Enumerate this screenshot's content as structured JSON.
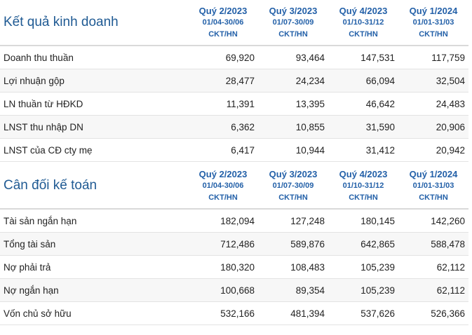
{
  "periods": [
    {
      "quarter": "Quý 2/2023",
      "range": "01/04-30/06",
      "unit": "CKT/HN"
    },
    {
      "quarter": "Quý 3/2023",
      "range": "01/07-30/09",
      "unit": "CKT/HN"
    },
    {
      "quarter": "Quý 4/2023",
      "range": "01/10-31/12",
      "unit": "CKT/HN"
    },
    {
      "quarter": "Quý 1/2024",
      "range": "01/01-31/03",
      "unit": "CKT/HN"
    }
  ],
  "business": {
    "title": "Kết quả kinh doanh",
    "rows": [
      {
        "label": "Doanh thu thuần",
        "values": [
          "69,920",
          "93,464",
          "147,531",
          "117,759"
        ]
      },
      {
        "label": "Lợi nhuận gộp",
        "values": [
          "28,477",
          "24,234",
          "66,094",
          "32,504"
        ]
      },
      {
        "label": "LN thuần từ HĐKD",
        "values": [
          "11,391",
          "13,395",
          "46,642",
          "24,483"
        ]
      },
      {
        "label": "LNST thu nhập DN",
        "values": [
          "6,362",
          "10,855",
          "31,590",
          "20,906"
        ]
      },
      {
        "label": "LNST của CĐ cty mẹ",
        "values": [
          "6,417",
          "10,944",
          "31,412",
          "20,942"
        ]
      }
    ]
  },
  "balance": {
    "title": "Cân đối kế toán",
    "rows": [
      {
        "label": "Tài sản ngắn hạn",
        "values": [
          "182,094",
          "127,248",
          "180,145",
          "142,260"
        ]
      },
      {
        "label": "Tổng tài sản",
        "values": [
          "712,486",
          "589,876",
          "642,865",
          "588,478"
        ]
      },
      {
        "label": "Nợ phải trả",
        "values": [
          "180,320",
          "108,483",
          "105,239",
          "62,112"
        ]
      },
      {
        "label": "Nợ ngắn hạn",
        "values": [
          "100,668",
          "89,354",
          "105,239",
          "62,112"
        ]
      },
      {
        "label": "Vốn chủ sở hữu",
        "values": [
          "532,166",
          "481,394",
          "537,626",
          "526,366"
        ]
      }
    ]
  }
}
